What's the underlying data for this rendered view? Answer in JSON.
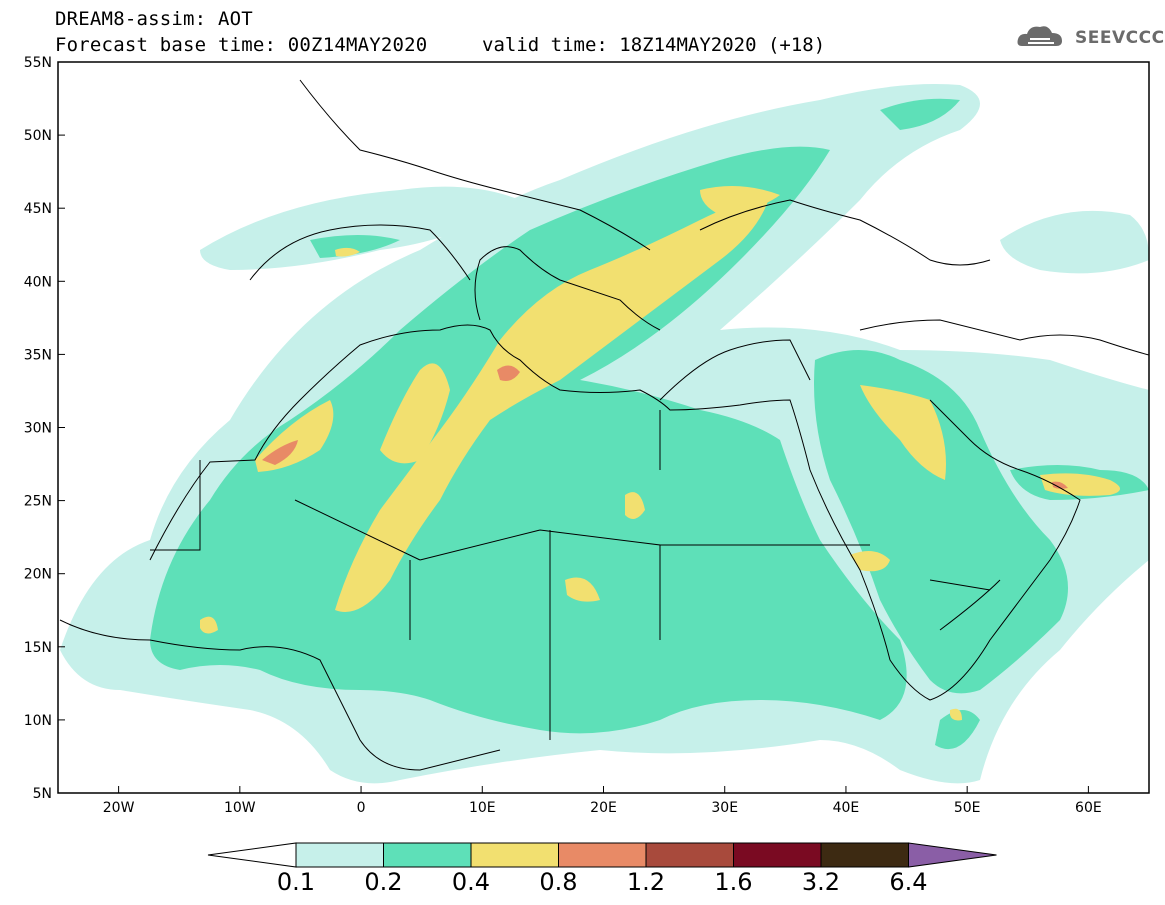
{
  "header": {
    "title": "DREAM8-assim: AOT",
    "base_time": "Forecast base time: 00Z14MAY2020",
    "valid_time": "valid time: 18Z14MAY2020 (+18)",
    "logo_text": "SEEVCCC"
  },
  "map": {
    "projection": "lat-lon",
    "lon_range": [
      -25,
      65
    ],
    "lat_range": [
      5,
      55
    ],
    "lat_ticks": [
      "55N",
      "50N",
      "45N",
      "40N",
      "35N",
      "30N",
      "25N",
      "20N",
      "15N",
      "10N",
      "5N"
    ],
    "lon_ticks": [
      "20W",
      "10W",
      "0",
      "10E",
      "20E",
      "30E",
      "40E",
      "50E",
      "60E"
    ]
  },
  "legend": {
    "thresholds": [
      "0.1",
      "0.2",
      "0.4",
      "0.8",
      "1.2",
      "1.6",
      "3.2",
      "6.4"
    ],
    "colors": [
      "#c6f0ea",
      "#5ee0b8",
      "#f2e070",
      "#e88a66",
      "#a84a3c",
      "#7a0a22",
      "#3d2a12",
      "#8a5ea6"
    ],
    "lower_arrow_color": "#ffffff"
  }
}
